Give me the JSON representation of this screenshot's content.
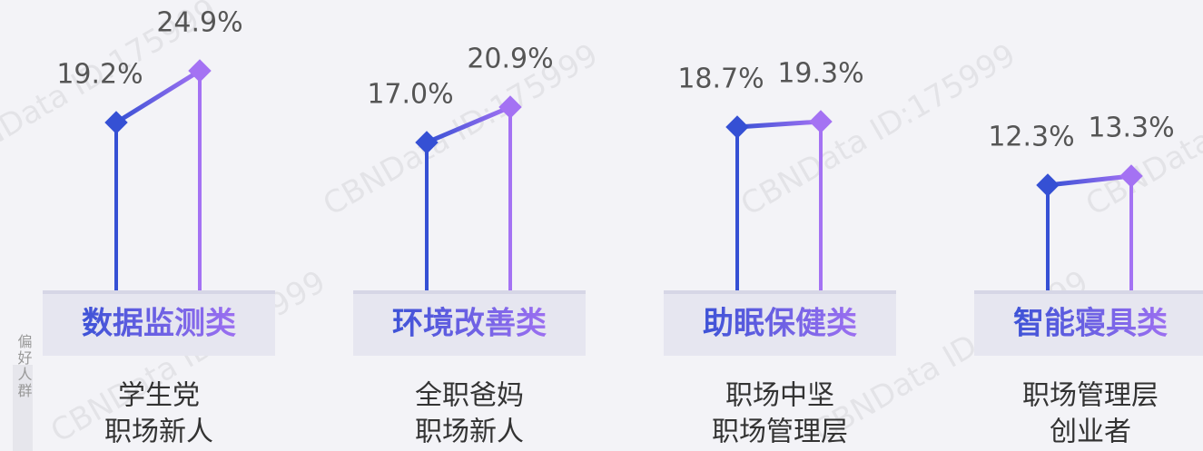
{
  "side_label": "偏好人群",
  "watermark": "CBNData ID:175999",
  "chart_data": [
    {
      "type": "line",
      "title": "数据监测类",
      "audience": [
        "学生党",
        "职场新人"
      ],
      "values": [
        19.2,
        24.9
      ],
      "value_labels": [
        "19.2%",
        "24.9%"
      ],
      "colors": [
        "#3550d4",
        "#a472f3"
      ]
    },
    {
      "type": "line",
      "title": "环境改善类",
      "audience": [
        "全职爸妈",
        "职场新人"
      ],
      "values": [
        17.0,
        20.9
      ],
      "value_labels": [
        "17.0%",
        "20.9%"
      ],
      "colors": [
        "#3550d4",
        "#a472f3"
      ]
    },
    {
      "type": "line",
      "title": "助眠保健类",
      "audience": [
        "职场中坚",
        "职场管理层"
      ],
      "values": [
        18.7,
        19.3
      ],
      "value_labels": [
        "18.7%",
        "19.3%"
      ],
      "colors": [
        "#3550d4",
        "#a472f3"
      ]
    },
    {
      "type": "line",
      "title": "智能寝具类",
      "audience": [
        "职场管理层",
        "创业者"
      ],
      "values": [
        12.3,
        13.3
      ],
      "value_labels": [
        "12.3%",
        "13.3%"
      ],
      "colors": [
        "#3550d4",
        "#a472f3"
      ]
    }
  ]
}
